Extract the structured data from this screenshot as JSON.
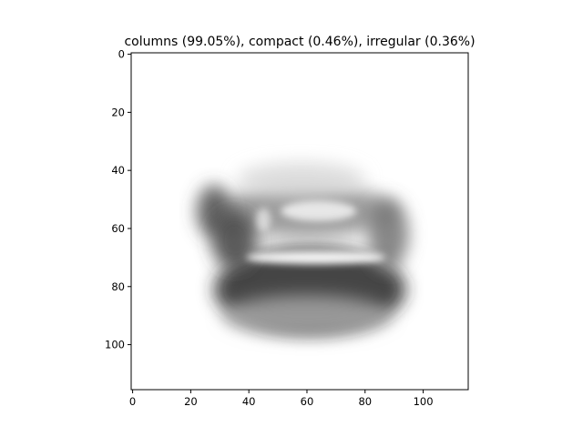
{
  "chart_data": {
    "type": "heatmap",
    "title": "columns (99.05%), compact (0.46%), irregular (0.36%)",
    "xlabel": "",
    "ylabel": "",
    "xlim": [
      -0.5,
      115.5
    ],
    "ylim": [
      115.5,
      -0.5
    ],
    "x_ticks": [
      0,
      20,
      40,
      60,
      80,
      100
    ],
    "y_ticks": [
      0,
      20,
      40,
      60,
      80,
      100
    ],
    "colormap": "grayscale (white = low, black = high)",
    "grid": false,
    "legend": "none",
    "image": {
      "description_of_content": "blurred grayscale image of a dark object roughly spanning x 20-98, y 33-98",
      "blobs": [
        {
          "name": "dark-base",
          "cx": 61,
          "cy": 81,
          "rx": 33,
          "ry": 15,
          "intensity": 0.85
        },
        {
          "name": "base-lower-fade",
          "cx": 60,
          "cy": 90,
          "rx": 29,
          "ry": 7,
          "intensity": 0.35
        },
        {
          "name": "upper-structure",
          "cx": 60,
          "cy": 54,
          "rx": 31,
          "ry": 9,
          "intensity": 0.45
        },
        {
          "name": "left-tower",
          "cx": 28,
          "cy": 54,
          "rx": 6,
          "ry": 9,
          "intensity": 0.7
        },
        {
          "name": "left-dark-edge",
          "cx": 35,
          "cy": 64,
          "rx": 8,
          "ry": 10,
          "intensity": 0.75
        },
        {
          "name": "top-haze",
          "cx": 58,
          "cy": 43,
          "rx": 22,
          "ry": 6,
          "intensity": 0.15
        },
        {
          "name": "right-column",
          "cx": 88,
          "cy": 62,
          "rx": 7,
          "ry": 12,
          "intensity": 0.55
        }
      ],
      "highlights": [
        {
          "name": "light-band",
          "cx": 63,
          "cy": 70,
          "rx": 24,
          "ry": 2.3,
          "intensity": 0.92
        },
        {
          "name": "upper-light-panel",
          "cx": 64,
          "cy": 54,
          "rx": 13,
          "ry": 3.5,
          "intensity": 0.75
        },
        {
          "name": "column-gap",
          "cx": 45,
          "cy": 57,
          "rx": 2.5,
          "ry": 4,
          "intensity": 0.6
        }
      ]
    }
  }
}
